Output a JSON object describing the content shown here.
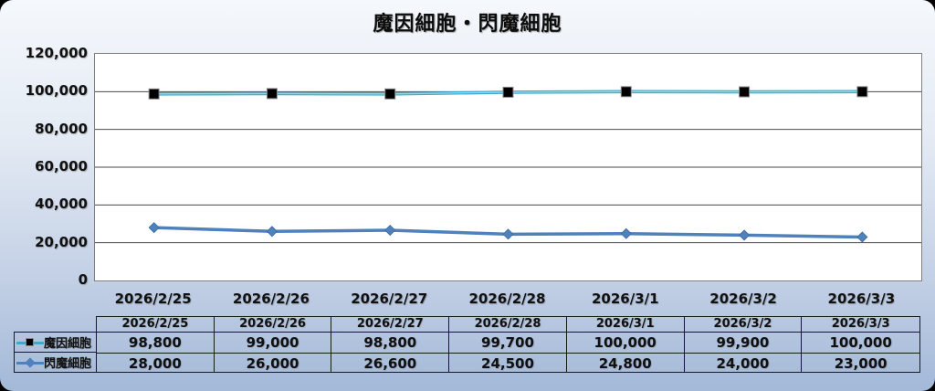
{
  "title": "魔因細胞・閃魔細胞",
  "colors": {
    "series1_line": "#41a8cc",
    "series1_line_highlight": "#8ed8ec",
    "series1_marker": "#000000",
    "series1_marker_edge": "#8a8a8a",
    "series2_line": "#4f81bd",
    "series2_marker": "#4f81bd",
    "plot_bg": "#ffffff",
    "plot_border": "#7f7f7f",
    "gridline": "#4a4a4a",
    "table_border": "#1a1a1a",
    "frame_top": "#f5f8fc",
    "frame_bottom": "#a3b9d8"
  },
  "chart_data": {
    "type": "line",
    "title": "魔因細胞・閃魔細胞",
    "categories": [
      "2026/2/25",
      "2026/2/26",
      "2026/2/27",
      "2026/2/28",
      "2026/3/1",
      "2026/3/2",
      "2026/3/3"
    ],
    "series": [
      {
        "name": "魔因細胞",
        "values": [
          98800,
          99000,
          98800,
          99700,
          100000,
          99900,
          100000
        ],
        "marker": "square"
      },
      {
        "name": "閃魔細胞",
        "values": [
          28000,
          26000,
          26600,
          24500,
          24800,
          24000,
          23000
        ],
        "marker": "diamond"
      }
    ],
    "ylim": [
      0,
      120000
    ],
    "ytick_step": 20000,
    "ytick_labels": [
      "0",
      "20,000",
      "40,000",
      "60,000",
      "80,000",
      "100,000",
      "120,000"
    ],
    "grid": true,
    "legend_position": "table-left"
  },
  "table": {
    "header": [
      "2026/2/25",
      "2026/2/26",
      "2026/2/27",
      "2026/2/28",
      "2026/3/1",
      "2026/3/2",
      "2026/3/3"
    ],
    "rows": [
      {
        "label": "魔因細胞",
        "values": [
          "98,800",
          "99,000",
          "98,800",
          "99,700",
          "100,000",
          "99,900",
          "100,000"
        ]
      },
      {
        "label": "閃魔細胞",
        "values": [
          "28,000",
          "26,000",
          "26,600",
          "24,500",
          "24,800",
          "24,000",
          "23,000"
        ]
      }
    ]
  }
}
